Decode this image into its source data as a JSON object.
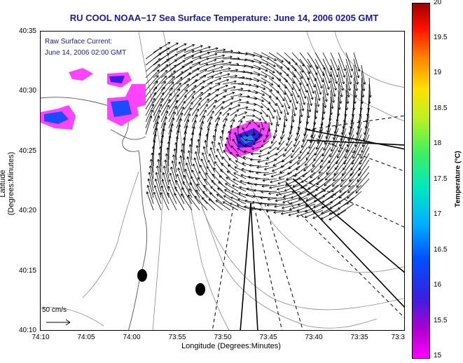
{
  "title": "RU COOL  NOAA−17  Sea Surface Temperature:  June 14, 2006 0205 GMT",
  "current_note": {
    "line1": "Raw Surface Current:",
    "line2": "June 14, 2006 02:00 GMT"
  },
  "scale_label": "50 cm/s",
  "axes": {
    "xlabel": "Longitude (Degrees:Minutes)",
    "ylabel": "Latitude (Degrees:Minutes)",
    "xticks": [
      "74:10",
      "74:05",
      "74:00",
      "73:55",
      "73:50",
      "73:45",
      "73:40",
      "73:35",
      "73:3"
    ],
    "yticks": [
      "40:35",
      "40:30",
      "40:25",
      "40:20",
      "40:15",
      "40:10"
    ]
  },
  "colorbar": {
    "label": "Temperature (°C)",
    "ticks": [
      "20",
      "19.5",
      "19",
      "18.5",
      "18",
      "17.5",
      "17",
      "16.5",
      "16",
      "15.5",
      "15"
    ],
    "min": 15,
    "max": 20
  },
  "colors": {
    "title_text": "#1a1a9a",
    "arrows": "#000000",
    "contours": "#888888"
  }
}
